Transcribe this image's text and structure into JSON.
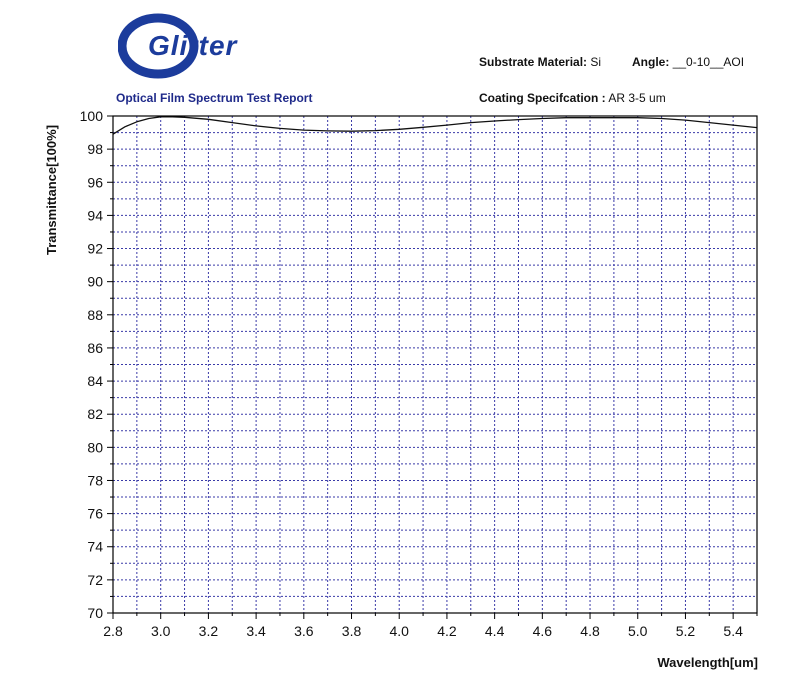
{
  "brand": {
    "logo_text": "Glitter",
    "accent": "#1c3c9c"
  },
  "report": {
    "title": "Optical Film Spectrum Test Report",
    "substrate_label": "Substrate Material:",
    "substrate_value": "Si",
    "angle_label": "Angle:",
    "angle_value": "__0-10__AOI",
    "coating_label": "Coating Specifcation :",
    "coating_value": "AR 3-5 um"
  },
  "chart_data": {
    "type": "line",
    "xlabel": "Wavelength[um]",
    "ylabel": "Transmittance[100%]",
    "xlim": [
      2.8,
      5.5
    ],
    "ylim": [
      70,
      100
    ],
    "x_ticks": [
      "2.8",
      "3.0",
      "3.2",
      "3.4",
      "3.6",
      "3.8",
      "4.0",
      "4.2",
      "4.4",
      "4.6",
      "4.8",
      "5.0",
      "5.2",
      "5.4"
    ],
    "y_ticks": [
      "70",
      "72",
      "74",
      "76",
      "78",
      "80",
      "82",
      "84",
      "86",
      "88",
      "90",
      "92",
      "94",
      "96",
      "98",
      "100"
    ],
    "grid": true,
    "grid_color": "#3a3aa8",
    "line_color": "#111111",
    "series": [
      {
        "x": [
          2.8,
          2.85,
          2.9,
          2.95,
          3.0,
          3.05,
          3.1,
          3.2,
          3.3,
          3.4,
          3.5,
          3.6,
          3.7,
          3.8,
          3.9,
          4.0,
          4.1,
          4.2,
          4.3,
          4.4,
          4.5,
          4.6,
          4.7,
          4.8,
          4.9,
          5.0,
          5.1,
          5.2,
          5.3,
          5.4,
          5.5
        ],
        "y": [
          98.9,
          99.35,
          99.65,
          99.85,
          99.95,
          99.95,
          99.92,
          99.8,
          99.6,
          99.4,
          99.25,
          99.15,
          99.1,
          99.08,
          99.12,
          99.2,
          99.32,
          99.45,
          99.6,
          99.7,
          99.78,
          99.85,
          99.9,
          99.9,
          99.9,
          99.9,
          99.85,
          99.75,
          99.6,
          99.45,
          99.3
        ]
      }
    ]
  }
}
